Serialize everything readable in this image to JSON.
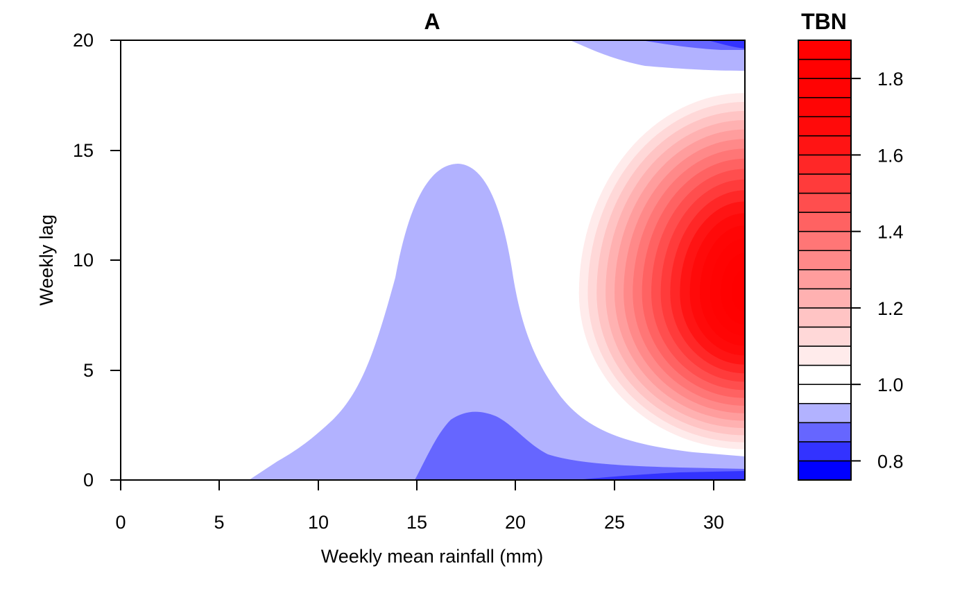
{
  "chart_data": {
    "type": "heatmap",
    "subtype": "filled-contour",
    "title": "A",
    "xlabel": "Weekly mean rainfall (mm)",
    "ylabel": "Weekly lag",
    "xlim": [
      0,
      31.6
    ],
    "ylim": [
      0,
      20
    ],
    "x_ticks": [
      "0",
      "5",
      "10",
      "15",
      "20",
      "25",
      "30"
    ],
    "y_ticks": [
      "0",
      "5",
      "10",
      "15",
      "20"
    ],
    "legend": {
      "title": "TBN",
      "placement": "right",
      "range": [
        0.75,
        1.9
      ],
      "tick_labels": [
        "0.8",
        "1.0",
        "1.2",
        "1.4",
        "1.6",
        "1.8"
      ],
      "levels": [
        0.75,
        0.8,
        0.85,
        0.9,
        0.95,
        1.0,
        1.05,
        1.1,
        1.15,
        1.2,
        1.25,
        1.3,
        1.35,
        1.4,
        1.45,
        1.5,
        1.55,
        1.6,
        1.65,
        1.7,
        1.75,
        1.8,
        1.85,
        1.9
      ],
      "colors": [
        "#0000FF",
        "#3333FF",
        "#6666FF",
        "#B2B2FF",
        "#FFFFFF",
        "#FFFFFF",
        "#FFEBEB",
        "#FFD8D8",
        "#FFC4C4",
        "#FFB1B1",
        "#FF9D9D",
        "#FF8989",
        "#FF7676",
        "#FF6262",
        "#FF4E4E",
        "#FF3B3B",
        "#FF2727",
        "#FF1414",
        "#FF0A0A",
        "#FF0505",
        "#FF0303",
        "#FF0101",
        "#FF0000"
      ]
    },
    "regions": [
      {
        "name": "lower-blue-0.90-0.95",
        "value_range": [
          0.9,
          0.95
        ],
        "color": "#B2B2FF"
      },
      {
        "name": "lower-blue-0.85-0.90",
        "value_range": [
          0.85,
          0.9
        ],
        "color": "#6666FF"
      },
      {
        "name": "lower-blue-0.80-0.85",
        "value_range": [
          0.8,
          0.85
        ],
        "color": "#3333FF"
      },
      {
        "name": "upper-blue-0.90-0.95",
        "value_range": [
          0.9,
          0.95
        ],
        "color": "#B2B2FF"
      },
      {
        "name": "upper-blue-0.80-0.90",
        "value_range": [
          0.8,
          0.9
        ],
        "color": "#6666FF"
      },
      {
        "name": "red-peak",
        "value_range": [
          1.05,
          1.9
        ],
        "peak": {
          "x": 31.6,
          "y": 8.5,
          "value": 1.9
        },
        "color": "#FF0000"
      }
    ]
  }
}
